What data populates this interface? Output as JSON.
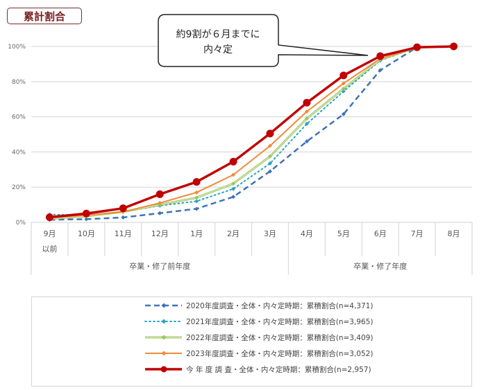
{
  "title_badge": "累計割合",
  "callout": {
    "line1": "約9割が６月までに",
    "line2": "内々定"
  },
  "chart_data": {
    "type": "line",
    "title": "累計割合",
    "categories": [
      "9月\n以前",
      "10月",
      "11月",
      "12月",
      "1月",
      "2月",
      "3月",
      "4月",
      "5月",
      "6月",
      "7月",
      "8月"
    ],
    "category_lines": [
      [
        "9月",
        "以前"
      ],
      [
        "10月"
      ],
      [
        "11月"
      ],
      [
        "12月"
      ],
      [
        "1月"
      ],
      [
        "2月"
      ],
      [
        "3月"
      ],
      [
        "4月"
      ],
      [
        "5月"
      ],
      [
        "6月"
      ],
      [
        "7月"
      ],
      [
        "8月"
      ]
    ],
    "groups": [
      {
        "label": "卒業・修了前年度",
        "from": 0,
        "to": 6
      },
      {
        "label": "卒業・修了年度",
        "from": 7,
        "to": 11
      }
    ],
    "ylim": [
      0,
      100
    ],
    "yticks": [
      "0%",
      "20%",
      "40%",
      "60%",
      "80%",
      "100%"
    ],
    "grid": true,
    "legend_position": "bottom",
    "series": [
      {
        "name": "2020年度調査・全体・内々定時期：累積割合(n=4,371)",
        "color": "#3f72b5",
        "style": "dashed",
        "marker": "diamond",
        "values": [
          1.5,
          1.8,
          2.8,
          5.2,
          7.7,
          14.5,
          29,
          46,
          61.5,
          86.5,
          99.5,
          null
        ]
      },
      {
        "name": "2021年度調査・全体・内々定時期：累積割合(n=3,965)",
        "color": "#2aa3c1",
        "style": "dotted",
        "marker": "diamond",
        "values": [
          4.5,
          4,
          6,
          9.5,
          12,
          19,
          33.5,
          56,
          74.5,
          92,
          99.5,
          null
        ]
      },
      {
        "name": "2022年度調査・全体・内々定時期：累積割合(n=3,409)",
        "color": "#9cc45a",
        "style": "double",
        "marker": "diamond",
        "values": [
          2,
          3.5,
          6,
          10,
          14,
          22,
          37.5,
          59,
          76,
          92.5,
          99.5,
          null
        ]
      },
      {
        "name": "2023年度調査・全体・内々定時期：累積割合(n=3,052)",
        "color": "#f08a3a",
        "style": "solid",
        "marker": "diamond",
        "values": [
          2.5,
          4,
          6,
          11,
          17,
          27,
          43.5,
          63,
          79,
          93,
          99.5,
          null
        ]
      },
      {
        "name": "今 年 度 調 査・全体・内々定時期：累積割合(n=2,957)",
        "color": "#c00000",
        "style": "solid-bold",
        "marker": "circle",
        "values": [
          2.9,
          5,
          8,
          16,
          23,
          34.5,
          50.5,
          68,
          83.5,
          94.5,
          99.5,
          100
        ]
      }
    ]
  }
}
